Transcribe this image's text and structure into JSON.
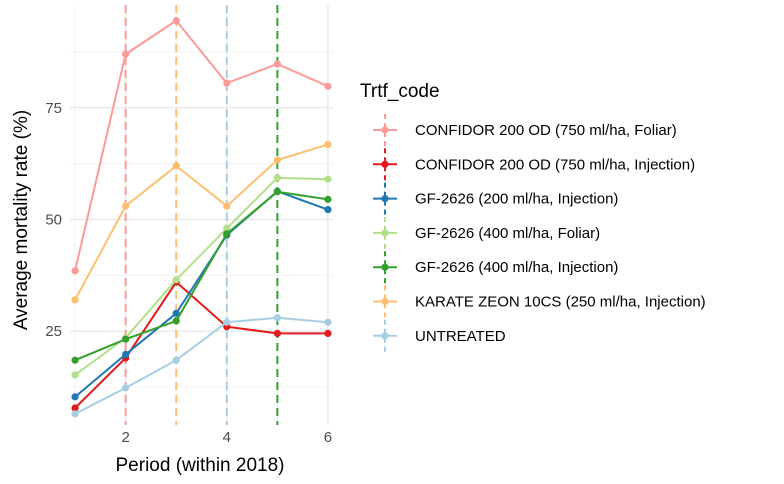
{
  "chart_data": {
    "type": "line",
    "xlabel": "Period (within 2018)",
    "ylabel": "Average mortality rate (%)",
    "x": [
      1,
      2,
      3,
      4,
      5,
      6
    ],
    "xlim": [
      0.9,
      6.1
    ],
    "ylim": [
      4,
      98
    ],
    "x_ticks": [
      2,
      4,
      6
    ],
    "y_ticks": [
      25,
      50,
      75
    ],
    "grid": true,
    "legend_title": "Trtf_code",
    "legend_position": "right",
    "series": [
      {
        "name": "CONFIDOR 200 OD (750 ml/ha, Foliar)",
        "color": "#fb9a99",
        "values": [
          38.5,
          87,
          94.5,
          80.5,
          84.8,
          79.8
        ]
      },
      {
        "name": "CONFIDOR 200 OD (750 ml/ha, Injection)",
        "color": "#e31a1c",
        "values": [
          7.8,
          19,
          36,
          26,
          24.5,
          24.5
        ]
      },
      {
        "name": "GF-2626 (200 ml/ha, Injection)",
        "color": "#1f78b4",
        "values": [
          10.3,
          19.8,
          29,
          46.5,
          56.3,
          52.2
        ]
      },
      {
        "name": "GF-2626 (400 ml/ha, Foliar)",
        "color": "#b2df8a",
        "values": [
          15.2,
          23.5,
          36.5,
          48,
          59.3,
          59
        ]
      },
      {
        "name": "GF-2626 (400 ml/ha, Injection)",
        "color": "#33a02c",
        "values": [
          18.5,
          23.2,
          27.3,
          46.8,
          56.2,
          54.5
        ]
      },
      {
        "name": "KARATE ZEON 10CS (250 ml/ha, Injection)",
        "color": "#fdbf6f",
        "values": [
          32,
          53,
          62,
          53,
          63.3,
          66.8
        ]
      },
      {
        "name": "UNTREATED",
        "color": "#a6cee3",
        "values": [
          6.5,
          12.3,
          18.5,
          27,
          28,
          27
        ]
      }
    ],
    "reference_lines": [
      {
        "x": 2,
        "color": "#fb9a99"
      },
      {
        "x": 3,
        "color": "#fdbf6f"
      },
      {
        "x": 4,
        "color": "#a6cee3"
      },
      {
        "x": 5,
        "color": "#33a02c"
      }
    ]
  }
}
